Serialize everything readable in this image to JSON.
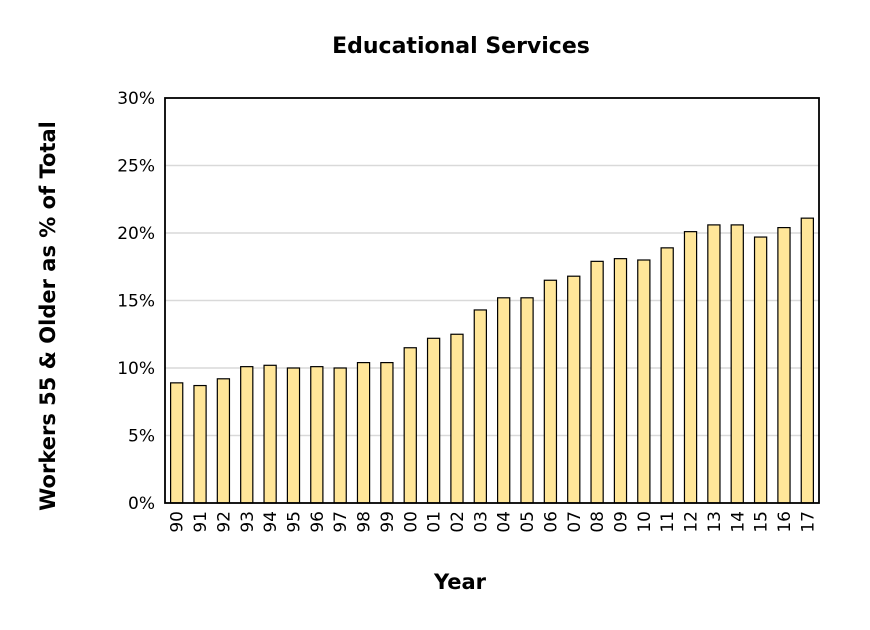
{
  "chart_data": {
    "type": "bar",
    "title": "Educational Services",
    "xlabel": "Year",
    "ylabel": "Workers 55 & Older as % of Total",
    "categories": [
      "90",
      "91",
      "92",
      "93",
      "94",
      "95",
      "96",
      "97",
      "98",
      "99",
      "00",
      "01",
      "02",
      "03",
      "04",
      "05",
      "06",
      "07",
      "08",
      "09",
      "10",
      "11",
      "12",
      "13",
      "14",
      "15",
      "16",
      "17"
    ],
    "values": [
      8.9,
      8.7,
      9.2,
      10.1,
      10.2,
      10.0,
      10.1,
      10.0,
      10.4,
      10.4,
      11.5,
      12.2,
      12.5,
      14.3,
      15.2,
      15.2,
      16.5,
      16.8,
      17.9,
      18.1,
      18.0,
      18.9,
      20.1,
      20.6,
      20.6,
      19.7,
      20.4,
      21.1
    ],
    "ylim": [
      0,
      30
    ],
    "yticks": [
      0,
      5,
      10,
      15,
      20,
      25,
      30
    ],
    "ytick_labels": [
      "0%",
      "5%",
      "10%",
      "15%",
      "20%",
      "25%",
      "30%"
    ],
    "grid": true,
    "legend": "none",
    "bar_color": "#ffe699"
  }
}
